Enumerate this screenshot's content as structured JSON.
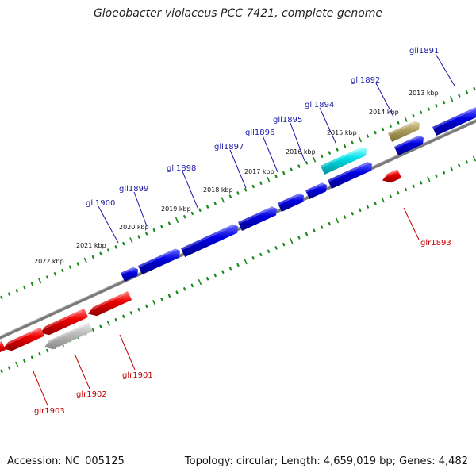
{
  "title": "Gloeobacter violaceus PCC 7421, complete genome",
  "footer": {
    "accession": "Accession: NC_005125",
    "topology": "Topology: circular; Length: 4,659,019 bp; Genes: 4,482"
  },
  "kbp_ticks": [
    "2013 kbp",
    "2014 kbp",
    "2015 kbp",
    "2016 kbp",
    "2017 kbp",
    "2018 kbp",
    "2019 kbp",
    "2020 kbp",
    "2021 kbp",
    "2022 kbp"
  ],
  "forward_genes": [
    "gll1891",
    "gll1892",
    "gll1894",
    "gll1895",
    "gll1896",
    "gll1897",
    "gll1898",
    "gll1899",
    "gll1900"
  ],
  "reverse_genes": [
    "glr1893",
    "glr1901",
    "glr1902",
    "glr1903"
  ],
  "colors": {
    "forward": "#0000e0",
    "reverse": "#ee0000",
    "highlight_cyan": "#00e0e8",
    "highlight_olive": "#b0a060",
    "gray_feature": "#b8b8b8",
    "backbone": "#808080",
    "tick_dots": "#1a8a1a"
  }
}
